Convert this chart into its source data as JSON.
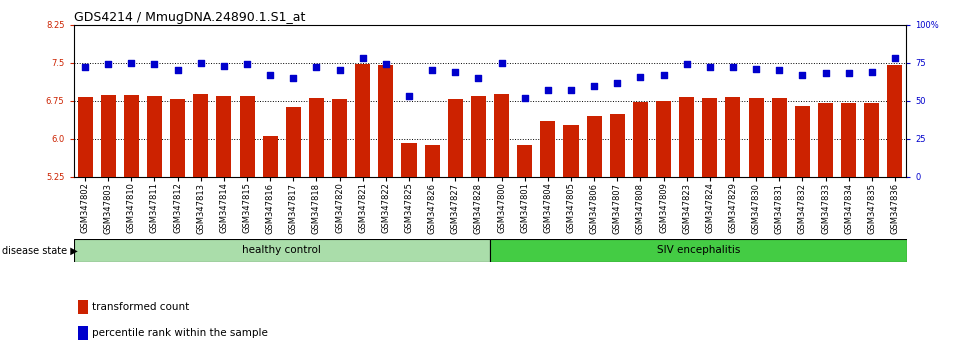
{
  "title": "GDS4214 / MmugDNA.24890.1.S1_at",
  "samples": [
    "GSM347802",
    "GSM347803",
    "GSM347810",
    "GSM347811",
    "GSM347812",
    "GSM347813",
    "GSM347814",
    "GSM347815",
    "GSM347816",
    "GSM347817",
    "GSM347818",
    "GSM347820",
    "GSM347821",
    "GSM347822",
    "GSM347825",
    "GSM347826",
    "GSM347827",
    "GSM347828",
    "GSM347800",
    "GSM347801",
    "GSM347804",
    "GSM347805",
    "GSM347806",
    "GSM347807",
    "GSM347808",
    "GSM347809",
    "GSM347823",
    "GSM347824",
    "GSM347829",
    "GSM347830",
    "GSM347831",
    "GSM347832",
    "GSM347833",
    "GSM347834",
    "GSM347835",
    "GSM347836"
  ],
  "bar_values": [
    6.82,
    6.87,
    6.87,
    6.85,
    6.78,
    6.88,
    6.85,
    6.84,
    6.05,
    6.63,
    6.8,
    6.78,
    7.47,
    7.46,
    5.92,
    5.88,
    6.78,
    6.84,
    6.88,
    5.88,
    6.35,
    6.28,
    6.45,
    6.5,
    6.73,
    6.74,
    6.82,
    6.8,
    6.82,
    6.8,
    6.8,
    6.65,
    6.7,
    6.7,
    6.71,
    7.46
  ],
  "dot_values": [
    72,
    74,
    75,
    74,
    70,
    75,
    73,
    74,
    67,
    65,
    72,
    70,
    78,
    74,
    53,
    70,
    69,
    65,
    75,
    52,
    57,
    57,
    60,
    62,
    66,
    67,
    74,
    72,
    72,
    71,
    70,
    67,
    68,
    68,
    69,
    78
  ],
  "healthy_count": 18,
  "ylim_left": [
    5.25,
    8.25
  ],
  "ylim_right": [
    0,
    100
  ],
  "yticks_left": [
    5.25,
    6.0,
    6.75,
    7.5,
    8.25
  ],
  "yticks_right": [
    0,
    25,
    50,
    75,
    100
  ],
  "grid_values": [
    6.0,
    6.75,
    7.5
  ],
  "bar_color": "#CC2200",
  "dot_color": "#0000CC",
  "healthy_color": "#AADDAA",
  "siv_color": "#44CC44",
  "bar_width": 0.65,
  "title_fontsize": 9,
  "tick_fontsize": 6,
  "label_fontsize": 8
}
